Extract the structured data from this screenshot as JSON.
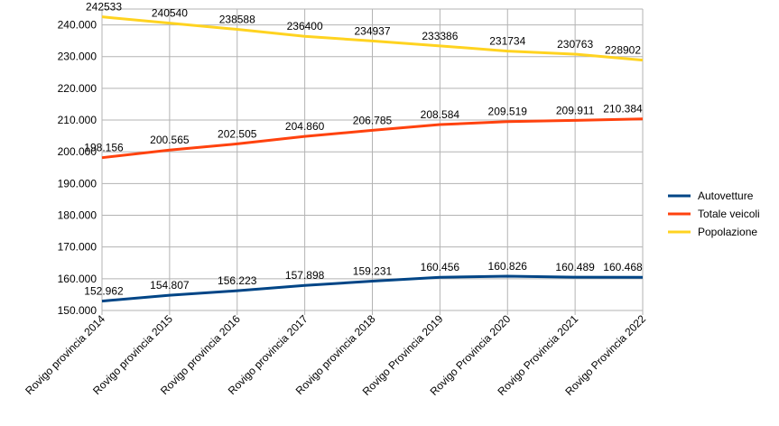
{
  "chart_data": {
    "type": "line",
    "title": "",
    "xlabel": "",
    "ylabel": "",
    "ylim": [
      150000,
      245000
    ],
    "y_tick_labels": [
      "150.000",
      "160.000",
      "170.000",
      "180.000",
      "190.000",
      "200.000",
      "210.000",
      "220.000",
      "230.000",
      "240.000"
    ],
    "y_tick_values": [
      150000,
      160000,
      170000,
      180000,
      190000,
      200000,
      210000,
      220000,
      230000,
      240000
    ],
    "categories": [
      "Rovigo provincia 2014",
      "Rovigo provincia 2015",
      "Rovigo provincia 2016",
      "Rovigo provincia 2017",
      "Rovigo provincia 2018",
      "Rovigo Provincia 2019",
      "Rovigo Provincia 2020",
      "Rovigo Provincia 2021",
      "Rovigo Provincia 2022"
    ],
    "legend_position": "right",
    "grid": true,
    "series": [
      {
        "name": "Autovetture",
        "color": "#004586",
        "values": [
          152962,
          154807,
          156223,
          157898,
          159231,
          160456,
          160826,
          160489,
          160468
        ],
        "labels": [
          "152.962",
          "154.807",
          "156.223",
          "157.898",
          "159.231",
          "160.456",
          "160.826",
          "160.489",
          "160.468"
        ]
      },
      {
        "name": "Totale veicoli",
        "color": "#ff420e",
        "values": [
          198156,
          200565,
          202505,
          204860,
          206785,
          208584,
          209519,
          209911,
          210384
        ],
        "labels": [
          "198.156",
          "200.565",
          "202.505",
          "204.860",
          "206.785",
          "208.584",
          "209.519",
          "209.911",
          "210.384"
        ]
      },
      {
        "name": "Popolazione",
        "color": "#ffd320",
        "values": [
          242533,
          240540,
          238588,
          236400,
          234937,
          233386,
          231734,
          230763,
          228902
        ],
        "labels": [
          "242533",
          "240540",
          "238588",
          "236400",
          "234937",
          "233386",
          "231734",
          "230763",
          "228902"
        ]
      }
    ]
  }
}
